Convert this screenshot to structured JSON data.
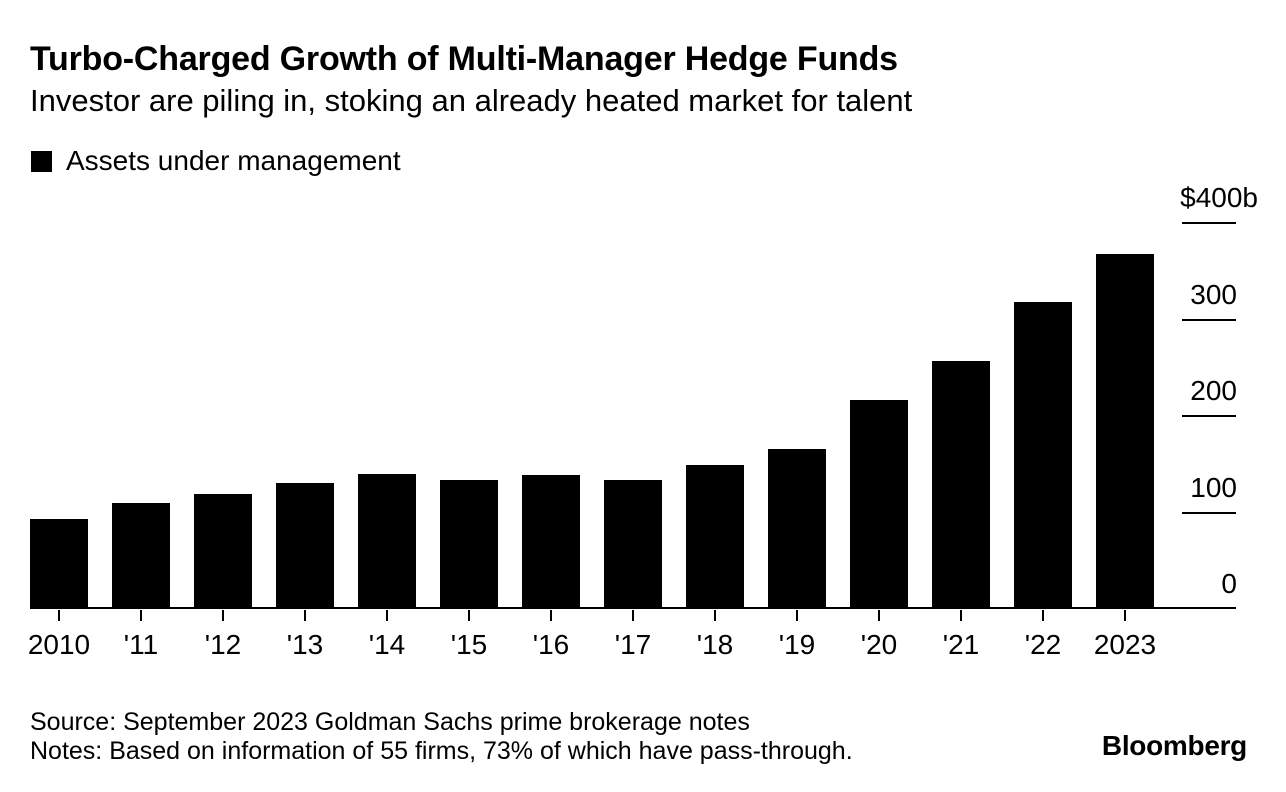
{
  "header": {
    "title": "Turbo-Charged Growth of Multi-Manager Hedge Funds",
    "subtitle": "Investor are piling in, stoking an already heated market for talent"
  },
  "legend": {
    "label": "Assets under management",
    "swatch_color": "#000000"
  },
  "chart_data": {
    "type": "bar",
    "title": "Turbo-Charged Growth of Multi-Manager Hedge Funds",
    "subtitle": "Investor are piling in, stoking an already heated market for talent",
    "series_name": "Assets under management",
    "unit": "$ billions",
    "categories": [
      "2010",
      "'11",
      "'12",
      "'13",
      "'14",
      "'15",
      "'16",
      "'17",
      "'18",
      "'19",
      "'20",
      "'21",
      "'22",
      "2023"
    ],
    "values": [
      93,
      110,
      119,
      131,
      140,
      134,
      139,
      134,
      149,
      166,
      217,
      257,
      318,
      368
    ],
    "bar_color": "#000000",
    "ylim": [
      0,
      400
    ],
    "y_axis_side": "right",
    "y_ticks": [
      {
        "label": "$400b",
        "value": 400
      },
      {
        "label": "300",
        "value": 300
      },
      {
        "label": "200",
        "value": 200
      },
      {
        "label": "100",
        "value": 100
      },
      {
        "label": "0",
        "value": 0
      }
    ],
    "grid": false,
    "legend_position": "top-left"
  },
  "footer": {
    "source": "Source: September 2023 Goldman Sachs prime brokerage notes",
    "notes": "Notes: Based on information of 55 firms, 73% of which have pass-through.",
    "brand": "Bloomberg"
  }
}
